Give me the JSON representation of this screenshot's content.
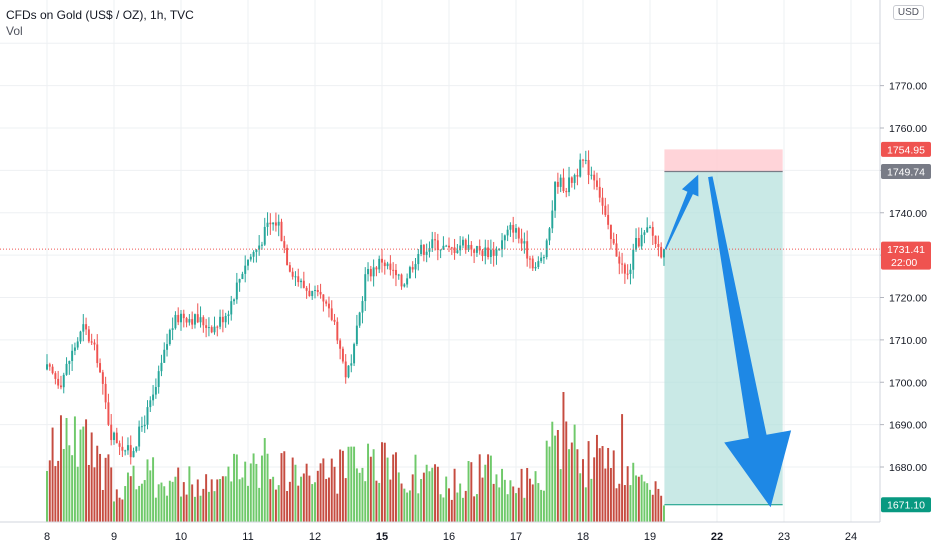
{
  "header": {
    "title": "CFDs on Gold (US$ / OZ), 1h, TVC",
    "indicator": "Vol",
    "currency": "USD"
  },
  "chart_data": {
    "type": "candlestick",
    "timeframe": "1h",
    "x_tick_labels": [
      "8",
      "9",
      "10",
      "11",
      "12",
      "15",
      "16",
      "17",
      "18",
      "19",
      "22",
      "23",
      "24"
    ],
    "x_tick_bold": [
      "15",
      "22"
    ],
    "y_tick_labels": [
      1680,
      1690,
      1700,
      1710,
      1720,
      1730,
      1740,
      1750,
      1760,
      1770
    ],
    "ylim": [
      1666.2,
      1779.7
    ],
    "grid": true,
    "price_labels": [
      {
        "id": "stop",
        "text": "1754.95",
        "color": "#ef5350"
      },
      {
        "id": "entry",
        "text": "1749.74",
        "color": "#787b86"
      },
      {
        "id": "last",
        "text": "1731.41",
        "sub": "22:00",
        "color": "#ef5350"
      },
      {
        "id": "target",
        "text": "1671.10",
        "color": "#089981"
      }
    ],
    "current_price": 1731.41,
    "anchors": [
      {
        "d": 0.0,
        "p": 1703
      },
      {
        "d": 0.2,
        "p": 1700
      },
      {
        "d": 0.4,
        "p": 1708
      },
      {
        "d": 0.55,
        "p": 1713
      },
      {
        "d": 0.75,
        "p": 1706
      },
      {
        "d": 0.95,
        "p": 1688
      },
      {
        "d": 1.25,
        "p": 1683
      },
      {
        "d": 1.6,
        "p": 1697
      },
      {
        "d": 1.85,
        "p": 1713
      },
      {
        "d": 2.0,
        "p": 1716
      },
      {
        "d": 2.2,
        "p": 1715
      },
      {
        "d": 2.5,
        "p": 1713
      },
      {
        "d": 2.7,
        "p": 1717
      },
      {
        "d": 2.95,
        "p": 1728
      },
      {
        "d": 3.15,
        "p": 1732
      },
      {
        "d": 3.3,
        "p": 1737
      },
      {
        "d": 3.45,
        "p": 1738
      },
      {
        "d": 3.6,
        "p": 1728
      },
      {
        "d": 3.8,
        "p": 1723
      },
      {
        "d": 4.1,
        "p": 1719
      },
      {
        "d": 4.3,
        "p": 1714
      },
      {
        "d": 4.45,
        "p": 1702
      },
      {
        "d": 4.55,
        "p": 1704
      },
      {
        "d": 4.75,
        "p": 1725
      },
      {
        "d": 5.0,
        "p": 1729
      },
      {
        "d": 5.3,
        "p": 1723
      },
      {
        "d": 5.55,
        "p": 1731
      },
      {
        "d": 5.8,
        "p": 1733
      },
      {
        "d": 6.0,
        "p": 1731
      },
      {
        "d": 6.2,
        "p": 1733
      },
      {
        "d": 6.45,
        "p": 1731
      },
      {
        "d": 6.7,
        "p": 1731
      },
      {
        "d": 6.95,
        "p": 1737
      },
      {
        "d": 7.15,
        "p": 1731
      },
      {
        "d": 7.3,
        "p": 1727
      },
      {
        "d": 7.45,
        "p": 1731
      },
      {
        "d": 7.6,
        "p": 1748
      },
      {
        "d": 7.75,
        "p": 1746
      },
      {
        "d": 8.0,
        "p": 1752
      },
      {
        "d": 8.2,
        "p": 1748
      },
      {
        "d": 8.3,
        "p": 1741
      },
      {
        "d": 8.4,
        "p": 1734
      },
      {
        "d": 8.55,
        "p": 1729
      },
      {
        "d": 8.65,
        "p": 1724
      },
      {
        "d": 8.8,
        "p": 1733
      },
      {
        "d": 9.0,
        "p": 1736
      },
      {
        "d": 9.15,
        "p": 1731
      },
      {
        "d": 9.23,
        "p": 1731
      }
    ],
    "volume_anchors": [
      {
        "d": 0.0,
        "v": 0.5
      },
      {
        "d": 0.3,
        "v": 0.8
      },
      {
        "d": 1.0,
        "v": 0.35
      },
      {
        "d": 1.6,
        "v": 0.4
      },
      {
        "d": 2.4,
        "v": 0.3
      },
      {
        "d": 3.1,
        "v": 0.55
      },
      {
        "d": 3.5,
        "v": 0.45
      },
      {
        "d": 4.4,
        "v": 0.45
      },
      {
        "d": 5.2,
        "v": 0.5
      },
      {
        "d": 6.0,
        "v": 0.3
      },
      {
        "d": 6.5,
        "v": 0.45
      },
      {
        "d": 7.3,
        "v": 0.3
      },
      {
        "d": 7.6,
        "v": 0.7
      },
      {
        "d": 8.3,
        "v": 0.5
      },
      {
        "d": 9.23,
        "v": 0.2
      }
    ],
    "volume_spikes": [
      {
        "d": 0.3,
        "v": 0.8
      },
      {
        "d": 7.7,
        "v": 1.0
      },
      {
        "d": 8.6,
        "v": 0.83
      },
      {
        "d": 3.5,
        "v": 0.53
      }
    ],
    "candle_seed": 17,
    "position": {
      "type": "short",
      "start_day": 9.23,
      "end_day": 10.98,
      "stop": 1754.95,
      "entry": 1749.74,
      "target": 1671.1,
      "profit_color": "#b2dfdb",
      "loss_color": "#ffcdd2"
    },
    "arrows": {
      "color": "#1e88e5",
      "up_from": {
        "d": 9.23,
        "p": 1731.41
      },
      "up_to": {
        "d": 9.72,
        "p": 1749.0
      },
      "down_from": {
        "d": 9.9,
        "p": 1748.5
      },
      "down_to": {
        "d": 10.8,
        "p": 1670.5
      }
    },
    "colors": {
      "up": "#26a69a",
      "down": "#ef5350",
      "vol_up": "#5fc35a",
      "vol_down": "#c0392b",
      "grid": "#eef0f3",
      "axis_text": "#131722",
      "last_line": "#ef5350"
    }
  }
}
